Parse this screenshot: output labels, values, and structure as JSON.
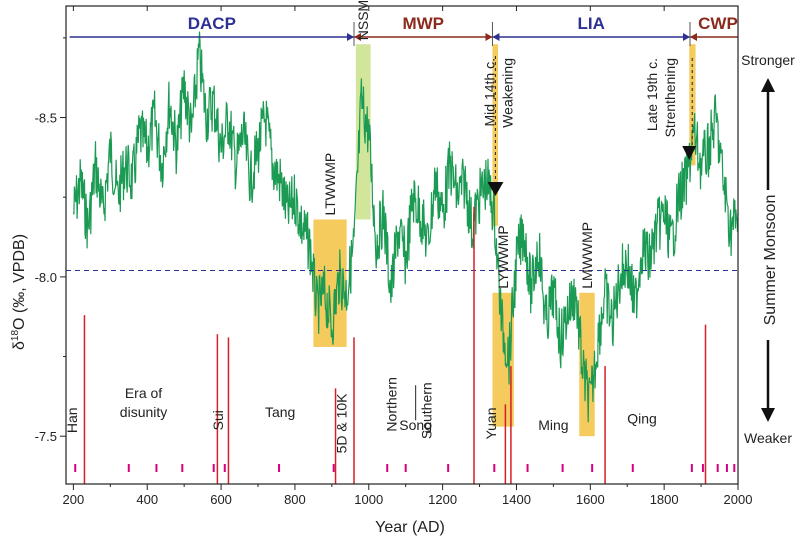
{
  "chart_data": {
    "type": "line",
    "xlabel": "Year (AD)",
    "ylabel": "δ18O (‰, VPDB)",
    "ylabel_parts": {
      "delta": "δ",
      "sup": "18",
      "rest": "O (‰, VPDB)"
    },
    "xlim": [
      180,
      2000
    ],
    "ylim": [
      -7.35,
      -8.85
    ],
    "y_inverted": true,
    "x_ticks": [
      200,
      400,
      600,
      800,
      1000,
      1200,
      1400,
      1600,
      1800,
      2000
    ],
    "y_ticks": [
      -8.5,
      -8.0,
      -7.5
    ],
    "y_tick_labels": [
      "-8.5",
      "-8.0",
      "-7.5"
    ],
    "mean_line": -8.02,
    "series_color": "#1a9a52",
    "right_axis": {
      "label": "Summer Monsoon",
      "top": "Stronger",
      "bottom": "Weaker"
    },
    "periods": [
      {
        "label": "DACP",
        "start": 190,
        "end": 960,
        "color": "#2e3192"
      },
      {
        "label": "MWP",
        "start": 960,
        "end": 1335,
        "color": "#8b2b1e"
      },
      {
        "label": "LIA",
        "start": 1335,
        "end": 1870,
        "color": "#2e3192"
      },
      {
        "label": "CWP",
        "start": 1870,
        "end": 2000,
        "color": "#8b2b1e"
      }
    ],
    "shaded_periods": [
      {
        "label": "LTWWMP",
        "start": 850,
        "end": 940,
        "y_top": -8.18,
        "y_bottom": -7.78,
        "color": "#f5c242"
      },
      {
        "label": "NSSMP",
        "start": 965,
        "end": 1005,
        "y_top": -8.73,
        "y_bottom": -8.18,
        "color": "#c9e08a"
      },
      {
        "label": "LYWWMP",
        "start": 1335,
        "end": 1393,
        "y_top": -7.95,
        "y_bottom": -7.53,
        "color": "#f5c242"
      },
      {
        "label": "LMWWMP",
        "start": 1570,
        "end": 1612,
        "y_top": -7.95,
        "y_bottom": -7.5,
        "color": "#f5c242"
      },
      {
        "label": "",
        "start": 1335,
        "end": 1350,
        "y_top": -8.73,
        "y_bottom": -8.16,
        "color": "#f5c242"
      },
      {
        "label": "",
        "start": 1868,
        "end": 1885,
        "y_top": -8.73,
        "y_bottom": -8.35,
        "color": "#f5c242"
      }
    ],
    "annotations": [
      {
        "text": "Mid 14th c.",
        "year": 1352
      },
      {
        "text": "Weakening",
        "year": 1352
      },
      {
        "text": "Late 19th c.",
        "year": 1862
      },
      {
        "text": "Strenthening",
        "year": 1862
      }
    ],
    "dynasty_boundaries": [
      230,
      590,
      620,
      960,
      1285,
      1385,
      1640,
      1912
    ],
    "dynasties": [
      "Han",
      "Era of",
      "disunity",
      "Sui",
      "Tang",
      "5D & 10K",
      "Northern",
      "Southern",
      "Song",
      "Yuan",
      "Ming",
      "Qing"
    ],
    "pink_markers": [
      205,
      350,
      425,
      495,
      580,
      610,
      757,
      905,
      1050,
      1100,
      1215,
      1340,
      1430,
      1525,
      1605,
      1715,
      1875,
      1905,
      1945,
      1970,
      1990
    ],
    "series": [
      {
        "x": [
          200,
          220,
          240,
          260,
          280,
          300,
          320,
          340,
          360,
          380,
          400,
          420,
          440,
          460,
          480,
          500,
          520,
          540,
          560,
          580,
          600,
          620,
          640,
          660,
          680,
          700,
          720,
          740,
          760,
          780,
          800,
          820,
          840,
          860,
          880,
          900,
          920,
          940,
          960,
          980,
          1000,
          1020,
          1040,
          1060,
          1080,
          1100,
          1120,
          1140,
          1160,
          1180,
          1200,
          1220,
          1240,
          1260,
          1280,
          1300,
          1320,
          1340,
          1360,
          1380,
          1400,
          1420,
          1440,
          1460,
          1480,
          1500,
          1520,
          1540,
          1560,
          1580,
          1600,
          1620,
          1640,
          1660,
          1680,
          1700,
          1720,
          1740,
          1760,
          1780,
          1800,
          1820,
          1840,
          1860,
          1880,
          1900,
          1920,
          1940,
          1960,
          1980,
          2000
        ],
        "y": [
          -8.2,
          -8.3,
          -8.15,
          -8.35,
          -8.2,
          -8.4,
          -8.25,
          -8.35,
          -8.3,
          -8.45,
          -8.4,
          -8.5,
          -8.35,
          -8.55,
          -8.4,
          -8.6,
          -8.45,
          -8.7,
          -8.5,
          -8.55,
          -8.4,
          -8.5,
          -8.35,
          -8.45,
          -8.3,
          -8.4,
          -8.5,
          -8.35,
          -8.3,
          -8.2,
          -8.25,
          -8.15,
          -8.1,
          -7.9,
          -7.95,
          -7.85,
          -8.0,
          -7.95,
          -8.1,
          -8.55,
          -8.45,
          -8.1,
          -8.2,
          -7.95,
          -8.15,
          -8.05,
          -8.25,
          -8.2,
          -8.1,
          -8.3,
          -8.2,
          -8.35,
          -8.25,
          -8.3,
          -8.15,
          -8.25,
          -8.3,
          -8.2,
          -7.85,
          -7.75,
          -8.05,
          -8.15,
          -7.95,
          -8.1,
          -7.85,
          -7.95,
          -7.8,
          -7.9,
          -7.95,
          -7.7,
          -7.6,
          -7.8,
          -7.95,
          -7.85,
          -8.0,
          -8.05,
          -7.9,
          -8.1,
          -8.05,
          -8.15,
          -8.2,
          -8.1,
          -8.25,
          -8.3,
          -8.45,
          -8.35,
          -8.4,
          -8.5,
          -8.3,
          -8.15,
          -8.2
        ]
      }
    ]
  }
}
